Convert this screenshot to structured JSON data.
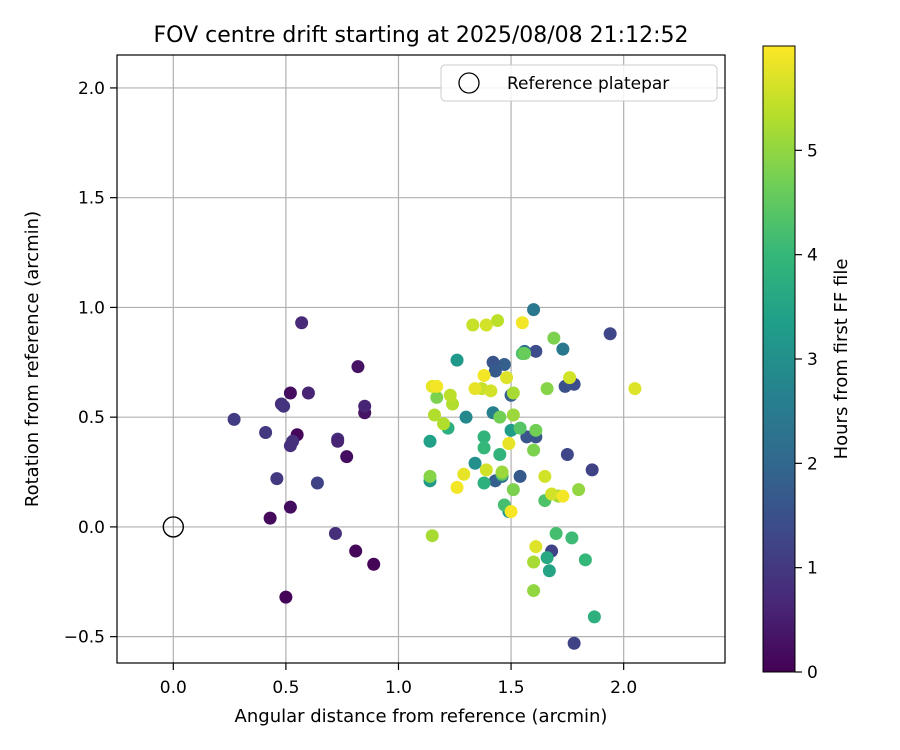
{
  "chart_data": {
    "type": "scatter",
    "title": "FOV centre drift starting at 2025/08/08 21:12:52",
    "xlabel": "Angular distance from reference (arcmin)",
    "ylabel": "Rotation from reference (arcmin)",
    "xlim": [
      -0.25,
      2.45
    ],
    "ylim": [
      -0.62,
      2.15
    ],
    "xticks": [
      0.0,
      0.5,
      1.0,
      1.5,
      2.0
    ],
    "xtick_labels": [
      "0.0",
      "0.5",
      "1.0",
      "1.5",
      "2.0"
    ],
    "yticks": [
      -0.5,
      0.0,
      0.5,
      1.0,
      1.5,
      2.0
    ],
    "ytick_labels": [
      "−0.5",
      "0.0",
      "0.5",
      "1.0",
      "1.5",
      "2.0"
    ],
    "grid": true,
    "legend": {
      "position": "top-right",
      "label": "Reference platepar"
    },
    "reference_point": {
      "x": 0.0,
      "y": 0.0
    },
    "colorbar": {
      "label": "Hours from first FF file",
      "cmap": "viridis",
      "range": [
        0,
        6.0
      ],
      "ticks": [
        0,
        1,
        2,
        3,
        4,
        5
      ],
      "tick_labels": [
        "0",
        "1",
        "2",
        "3",
        "4",
        "5"
      ],
      "colors": [
        "#440154",
        "#482878",
        "#3e4989",
        "#31688e",
        "#26828e",
        "#1f9e89",
        "#35b779",
        "#6ece58",
        "#b5de2b",
        "#fde725"
      ]
    },
    "points": [
      {
        "x": 0.55,
        "y": 0.42,
        "c": 0.1
      },
      {
        "x": 0.52,
        "y": 0.61,
        "c": 0.2
      },
      {
        "x": 0.43,
        "y": 0.04,
        "c": 0.15
      },
      {
        "x": 0.5,
        "y": -0.32,
        "c": 0.05
      },
      {
        "x": 0.52,
        "y": 0.09,
        "c": 0.2
      },
      {
        "x": 0.81,
        "y": -0.11,
        "c": 0.1
      },
      {
        "x": 0.89,
        "y": -0.17,
        "c": 0.05
      },
      {
        "x": 0.82,
        "y": 0.73,
        "c": 0.3
      },
      {
        "x": 0.77,
        "y": 0.32,
        "c": 0.2
      },
      {
        "x": 0.85,
        "y": 0.52,
        "c": 0.3
      },
      {
        "x": 0.85,
        "y": 0.55,
        "c": 0.6
      },
      {
        "x": 0.6,
        "y": 0.61,
        "c": 0.6
      },
      {
        "x": 0.57,
        "y": 0.93,
        "c": 0.7
      },
      {
        "x": 0.48,
        "y": 0.56,
        "c": 0.8
      },
      {
        "x": 0.49,
        "y": 0.55,
        "c": 0.9
      },
      {
        "x": 0.53,
        "y": 0.39,
        "c": 0.8
      },
      {
        "x": 0.52,
        "y": 0.37,
        "c": 0.8
      },
      {
        "x": 0.73,
        "y": 0.4,
        "c": 0.8
      },
      {
        "x": 0.73,
        "y": 0.39,
        "c": 0.6
      },
      {
        "x": 0.72,
        "y": -0.03,
        "c": 0.8
      },
      {
        "x": 0.46,
        "y": 0.22,
        "c": 1.0
      },
      {
        "x": 0.41,
        "y": 0.43,
        "c": 1.0
      },
      {
        "x": 0.27,
        "y": 0.49,
        "c": 1.1
      },
      {
        "x": 0.64,
        "y": 0.2,
        "c": 1.2
      },
      {
        "x": 1.94,
        "y": 0.88,
        "c": 1.3
      },
      {
        "x": 1.78,
        "y": -0.53,
        "c": 1.2
      },
      {
        "x": 1.86,
        "y": 0.26,
        "c": 1.2
      },
      {
        "x": 1.75,
        "y": 0.33,
        "c": 1.3
      },
      {
        "x": 1.78,
        "y": 0.65,
        "c": 1.4
      },
      {
        "x": 1.74,
        "y": 0.64,
        "c": 1.5
      },
      {
        "x": 1.68,
        "y": -0.11,
        "c": 1.2
      },
      {
        "x": 1.61,
        "y": 0.8,
        "c": 1.4
      },
      {
        "x": 1.61,
        "y": 0.41,
        "c": 1.6
      },
      {
        "x": 1.57,
        "y": 0.41,
        "c": 1.6
      },
      {
        "x": 1.54,
        "y": 0.23,
        "c": 1.7
      },
      {
        "x": 1.5,
        "y": 0.6,
        "c": 1.8
      },
      {
        "x": 1.47,
        "y": 0.74,
        "c": 1.8
      },
      {
        "x": 1.42,
        "y": 0.75,
        "c": 1.6
      },
      {
        "x": 1.43,
        "y": 0.71,
        "c": 1.7
      },
      {
        "x": 1.43,
        "y": 0.21,
        "c": 1.8
      },
      {
        "x": 1.56,
        "y": 0.8,
        "c": 2.2
      },
      {
        "x": 1.6,
        "y": 0.99,
        "c": 2.4
      },
      {
        "x": 1.73,
        "y": 0.81,
        "c": 2.4
      },
      {
        "x": 1.46,
        "y": 0.23,
        "c": 2.3
      },
      {
        "x": 1.42,
        "y": 0.52,
        "c": 2.6
      },
      {
        "x": 1.3,
        "y": 0.5,
        "c": 2.8
      },
      {
        "x": 1.26,
        "y": 0.76,
        "c": 3.2
      },
      {
        "x": 1.34,
        "y": 0.29,
        "c": 3.0
      },
      {
        "x": 1.14,
        "y": 0.21,
        "c": 3.2
      },
      {
        "x": 1.14,
        "y": 0.39,
        "c": 3.4
      },
      {
        "x": 1.5,
        "y": 0.44,
        "c": 3.3
      },
      {
        "x": 1.49,
        "y": 0.07,
        "c": 3.2
      },
      {
        "x": 1.67,
        "y": -0.2,
        "c": 3.5
      },
      {
        "x": 1.66,
        "y": -0.14,
        "c": 3.6
      },
      {
        "x": 1.38,
        "y": 0.2,
        "c": 3.8
      },
      {
        "x": 1.38,
        "y": 0.41,
        "c": 3.9
      },
      {
        "x": 1.38,
        "y": 0.36,
        "c": 4.0
      },
      {
        "x": 1.45,
        "y": 0.33,
        "c": 3.9
      },
      {
        "x": 1.22,
        "y": 0.45,
        "c": 3.8
      },
      {
        "x": 1.87,
        "y": -0.41,
        "c": 3.8
      },
      {
        "x": 1.83,
        "y": -0.15,
        "c": 4.0
      },
      {
        "x": 1.77,
        "y": -0.05,
        "c": 4.1
      },
      {
        "x": 1.7,
        "y": -0.03,
        "c": 4.2
      },
      {
        "x": 1.65,
        "y": 0.12,
        "c": 4.3
      },
      {
        "x": 1.55,
        "y": 0.79,
        "c": 4.3
      },
      {
        "x": 1.56,
        "y": 0.79,
        "c": 4.6
      },
      {
        "x": 1.54,
        "y": 0.45,
        "c": 4.4
      },
      {
        "x": 1.47,
        "y": 0.1,
        "c": 4.2
      },
      {
        "x": 1.46,
        "y": 0.24,
        "c": 4.5
      },
      {
        "x": 1.51,
        "y": 0.17,
        "c": 4.8
      },
      {
        "x": 1.61,
        "y": 0.44,
        "c": 4.7
      },
      {
        "x": 1.45,
        "y": 0.5,
        "c": 4.7
      },
      {
        "x": 1.17,
        "y": 0.59,
        "c": 4.8
      },
      {
        "x": 1.14,
        "y": 0.23,
        "c": 4.9
      },
      {
        "x": 1.6,
        "y": 0.35,
        "c": 4.8
      },
      {
        "x": 1.69,
        "y": 0.86,
        "c": 4.8
      },
      {
        "x": 1.66,
        "y": 0.63,
        "c": 4.9
      },
      {
        "x": 1.8,
        "y": 0.17,
        "c": 5.0
      },
      {
        "x": 1.71,
        "y": 0.14,
        "c": 5.1
      },
      {
        "x": 1.6,
        "y": -0.29,
        "c": 5.0
      },
      {
        "x": 1.6,
        "y": -0.16,
        "c": 5.2
      },
      {
        "x": 1.51,
        "y": 0.51,
        "c": 5.1
      },
      {
        "x": 1.51,
        "y": 0.61,
        "c": 5.2
      },
      {
        "x": 1.46,
        "y": 0.25,
        "c": 5.1
      },
      {
        "x": 1.15,
        "y": -0.04,
        "c": 5.2
      },
      {
        "x": 1.16,
        "y": 0.51,
        "c": 5.3
      },
      {
        "x": 1.2,
        "y": 0.47,
        "c": 5.3
      },
      {
        "x": 1.24,
        "y": 0.56,
        "c": 5.3
      },
      {
        "x": 1.23,
        "y": 0.6,
        "c": 5.4
      },
      {
        "x": 1.33,
        "y": 0.92,
        "c": 5.5
      },
      {
        "x": 1.39,
        "y": 0.92,
        "c": 5.6
      },
      {
        "x": 1.44,
        "y": 0.94,
        "c": 5.4
      },
      {
        "x": 1.37,
        "y": 0.63,
        "c": 5.5
      },
      {
        "x": 1.41,
        "y": 0.62,
        "c": 5.6
      },
      {
        "x": 1.48,
        "y": 0.68,
        "c": 5.7
      },
      {
        "x": 1.39,
        "y": 0.26,
        "c": 5.6
      },
      {
        "x": 1.49,
        "y": 0.38,
        "c": 5.8
      },
      {
        "x": 1.61,
        "y": -0.09,
        "c": 5.7
      },
      {
        "x": 1.65,
        "y": 0.23,
        "c": 5.6
      },
      {
        "x": 1.68,
        "y": 0.15,
        "c": 5.6
      },
      {
        "x": 1.76,
        "y": 0.68,
        "c": 5.6
      },
      {
        "x": 2.05,
        "y": 0.63,
        "c": 5.7
      },
      {
        "x": 1.55,
        "y": 0.93,
        "c": 5.9
      },
      {
        "x": 1.34,
        "y": 0.63,
        "c": 5.8
      },
      {
        "x": 1.38,
        "y": 0.69,
        "c": 5.9
      },
      {
        "x": 1.15,
        "y": 0.64,
        "c": 5.8
      },
      {
        "x": 1.17,
        "y": 0.64,
        "c": 5.9
      },
      {
        "x": 1.26,
        "y": 0.18,
        "c": 5.9
      },
      {
        "x": 1.29,
        "y": 0.24,
        "c": 5.8
      },
      {
        "x": 1.5,
        "y": 0.07,
        "c": 5.95
      },
      {
        "x": 1.73,
        "y": 0.14,
        "c": 5.9
      }
    ]
  }
}
